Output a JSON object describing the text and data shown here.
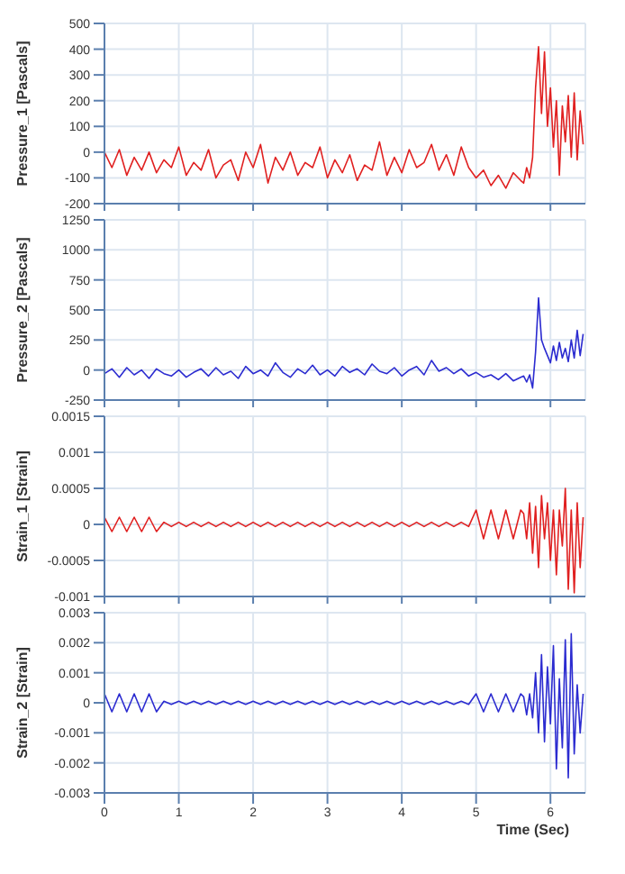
{
  "chart_data": [
    {
      "type": "line",
      "ylabel": "Pressure_1 [Pascals]",
      "color": "#e02020",
      "xlim": [
        0,
        6.47
      ],
      "xticks": [
        0,
        1,
        2,
        3,
        4,
        5,
        6
      ],
      "ylim": [
        -200,
        500
      ],
      "yticks": [
        -200,
        -100,
        0,
        100,
        200,
        300,
        400,
        500
      ],
      "grid": true,
      "tick_labels": "y",
      "x": [
        0,
        0.1,
        0.2,
        0.3,
        0.4,
        0.5,
        0.6,
        0.7,
        0.8,
        0.9,
        1,
        1.1,
        1.2,
        1.3,
        1.4,
        1.5,
        1.6,
        1.7,
        1.8,
        1.9,
        2,
        2.1,
        2.2,
        2.3,
        2.4,
        2.5,
        2.6,
        2.7,
        2.8,
        2.9,
        3,
        3.1,
        3.2,
        3.3,
        3.4,
        3.5,
        3.6,
        3.7,
        3.8,
        3.9,
        4,
        4.1,
        4.2,
        4.3,
        4.4,
        4.5,
        4.6,
        4.7,
        4.8,
        4.9,
        5,
        5.1,
        5.2,
        5.3,
        5.4,
        5.5,
        5.6,
        5.64,
        5.68,
        5.72,
        5.76,
        5.8,
        5.84,
        5.88,
        5.92,
        5.96,
        6,
        6.04,
        6.08,
        6.12,
        6.16,
        6.2,
        6.24,
        6.28,
        6.32,
        6.36,
        6.4,
        6.44
      ],
      "values": [
        0,
        -60,
        10,
        -90,
        -20,
        -70,
        0,
        -80,
        -30,
        -60,
        20,
        -90,
        -40,
        -70,
        10,
        -100,
        -50,
        -30,
        -110,
        0,
        -60,
        30,
        -120,
        -20,
        -70,
        0,
        -90,
        -40,
        -60,
        20,
        -100,
        -30,
        -80,
        -10,
        -110,
        -50,
        -70,
        40,
        -90,
        -20,
        -80,
        10,
        -60,
        -40,
        30,
        -70,
        -10,
        -90,
        20,
        -60,
        -100,
        -70,
        -130,
        -90,
        -140,
        -80,
        -110,
        -120,
        -60,
        -100,
        -20,
        250,
        410,
        150,
        390,
        100,
        250,
        20,
        200,
        -90,
        180,
        40,
        220,
        -20,
        230,
        -30,
        160,
        30
      ]
    },
    {
      "type": "line",
      "ylabel": "Pressure_2 [Pascals]",
      "color": "#2b2bd0",
      "xlim": [
        0,
        6.47
      ],
      "xticks": [
        0,
        1,
        2,
        3,
        4,
        5,
        6
      ],
      "ylim": [
        -250,
        1250
      ],
      "yticks": [
        -250,
        0,
        250,
        500,
        750,
        1000,
        1250
      ],
      "grid": true,
      "tick_labels": "y",
      "x": [
        0,
        0.1,
        0.2,
        0.3,
        0.4,
        0.5,
        0.6,
        0.7,
        0.8,
        0.9,
        1,
        1.1,
        1.2,
        1.3,
        1.4,
        1.5,
        1.6,
        1.7,
        1.8,
        1.9,
        2,
        2.1,
        2.2,
        2.3,
        2.4,
        2.5,
        2.6,
        2.7,
        2.8,
        2.9,
        3,
        3.1,
        3.2,
        3.3,
        3.4,
        3.5,
        3.6,
        3.7,
        3.8,
        3.9,
        4,
        4.1,
        4.2,
        4.3,
        4.4,
        4.5,
        4.6,
        4.7,
        4.8,
        4.9,
        5,
        5.1,
        5.2,
        5.3,
        5.4,
        5.5,
        5.6,
        5.64,
        5.68,
        5.72,
        5.76,
        5.8,
        5.84,
        5.88,
        5.92,
        5.96,
        6,
        6.04,
        6.08,
        6.12,
        6.16,
        6.2,
        6.24,
        6.28,
        6.32,
        6.36,
        6.4,
        6.44
      ],
      "values": [
        -30,
        10,
        -60,
        20,
        -40,
        0,
        -70,
        10,
        -30,
        -50,
        0,
        -60,
        -20,
        10,
        -50,
        20,
        -40,
        -10,
        -70,
        30,
        -30,
        0,
        -50,
        60,
        -20,
        -60,
        10,
        -30,
        40,
        -40,
        0,
        -50,
        30,
        -20,
        10,
        -40,
        50,
        -10,
        -30,
        20,
        -50,
        0,
        30,
        -40,
        80,
        -10,
        20,
        -30,
        10,
        -50,
        -20,
        -60,
        -40,
        -80,
        -30,
        -90,
        -60,
        -50,
        -100,
        -40,
        -150,
        150,
        600,
        250,
        180,
        120,
        60,
        200,
        80,
        230,
        100,
        180,
        70,
        250,
        100,
        330,
        120,
        300
      ]
    },
    {
      "type": "line",
      "ylabel": "Strain_1 [Strain]",
      "color": "#e02020",
      "xlim": [
        0,
        6.47
      ],
      "xticks": [
        0,
        1,
        2,
        3,
        4,
        5,
        6
      ],
      "ylim": [
        -0.001,
        0.0015
      ],
      "yticks": [
        -0.001,
        -0.0005,
        0,
        0.0005,
        0.001,
        0.0015
      ],
      "grid": true,
      "tick_labels": "y",
      "x": [
        0,
        0.1,
        0.2,
        0.3,
        0.4,
        0.5,
        0.6,
        0.7,
        0.8,
        0.9,
        1,
        1.1,
        1.2,
        1.3,
        1.4,
        1.5,
        1.6,
        1.7,
        1.8,
        1.9,
        2,
        2.1,
        2.2,
        2.3,
        2.4,
        2.5,
        2.6,
        2.7,
        2.8,
        2.9,
        3,
        3.1,
        3.2,
        3.3,
        3.4,
        3.5,
        3.6,
        3.7,
        3.8,
        3.9,
        4,
        4.1,
        4.2,
        4.3,
        4.4,
        4.5,
        4.6,
        4.7,
        4.8,
        4.9,
        5,
        5.1,
        5.2,
        5.3,
        5.4,
        5.5,
        5.6,
        5.64,
        5.68,
        5.72,
        5.76,
        5.8,
        5.84,
        5.88,
        5.92,
        5.96,
        6,
        6.04,
        6.08,
        6.12,
        6.16,
        6.2,
        6.24,
        6.28,
        6.32,
        6.36,
        6.4,
        6.44
      ],
      "values": [
        0.0001,
        -0.0001,
        0.0001,
        -0.0001,
        0.0001,
        -0.0001,
        0.0001,
        -0.0001,
        3e-05,
        -3e-05,
        3e-05,
        -3e-05,
        3e-05,
        -3e-05,
        3e-05,
        -3e-05,
        3e-05,
        -3e-05,
        3e-05,
        -3e-05,
        3e-05,
        -3e-05,
        3e-05,
        -3e-05,
        3e-05,
        -3e-05,
        3e-05,
        -3e-05,
        3e-05,
        -3e-05,
        3e-05,
        -3e-05,
        3e-05,
        -3e-05,
        3e-05,
        -3e-05,
        3e-05,
        -3e-05,
        3e-05,
        -3e-05,
        3e-05,
        -3e-05,
        3e-05,
        -3e-05,
        3e-05,
        -3e-05,
        3e-05,
        -3e-05,
        3e-05,
        -3e-05,
        0.0002,
        -0.0002,
        0.0002,
        -0.0002,
        0.0002,
        -0.0002,
        0.0002,
        0.00015,
        -0.0002,
        0.0003,
        -0.0004,
        0.00025,
        -0.0006,
        0.0004,
        -0.0002,
        0.0003,
        -0.0005,
        0.0002,
        -0.0007,
        0.0002,
        -0.0003,
        0.0005,
        -0.0009,
        0.0002,
        -0.00095,
        0.0003,
        -0.0006,
        0.0001
      ]
    },
    {
      "type": "line",
      "ylabel": "Strain_2 [Strain]",
      "xlabel": "Time (Sec)",
      "color": "#2b2bd0",
      "xlim": [
        0,
        6.47
      ],
      "xticks": [
        0,
        1,
        2,
        3,
        4,
        5,
        6
      ],
      "ylim": [
        -0.003,
        0.003
      ],
      "yticks": [
        -0.003,
        -0.002,
        -0.001,
        0,
        0.001,
        0.002,
        0.003
      ],
      "grid": true,
      "x": [
        0,
        0.1,
        0.2,
        0.3,
        0.4,
        0.5,
        0.6,
        0.7,
        0.8,
        0.9,
        1,
        1.1,
        1.2,
        1.3,
        1.4,
        1.5,
        1.6,
        1.7,
        1.8,
        1.9,
        2,
        2.1,
        2.2,
        2.3,
        2.4,
        2.5,
        2.6,
        2.7,
        2.8,
        2.9,
        3,
        3.1,
        3.2,
        3.3,
        3.4,
        3.5,
        3.6,
        3.7,
        3.8,
        3.9,
        4,
        4.1,
        4.2,
        4.3,
        4.4,
        4.5,
        4.6,
        4.7,
        4.8,
        4.9,
        5,
        5.1,
        5.2,
        5.3,
        5.4,
        5.5,
        5.6,
        5.64,
        5.68,
        5.72,
        5.76,
        5.8,
        5.84,
        5.88,
        5.92,
        5.96,
        6,
        6.04,
        6.08,
        6.12,
        6.16,
        6.2,
        6.24,
        6.28,
        6.32,
        6.36,
        6.4,
        6.44
      ],
      "values": [
        0.0003,
        -0.0003,
        0.0003,
        -0.0003,
        0.0003,
        -0.0003,
        0.0003,
        -0.0003,
        5e-05,
        -5e-05,
        5e-05,
        -5e-05,
        5e-05,
        -5e-05,
        5e-05,
        -5e-05,
        5e-05,
        -5e-05,
        5e-05,
        -5e-05,
        5e-05,
        -5e-05,
        5e-05,
        -5e-05,
        5e-05,
        -5e-05,
        5e-05,
        -5e-05,
        5e-05,
        -5e-05,
        5e-05,
        -5e-05,
        5e-05,
        -5e-05,
        5e-05,
        -5e-05,
        5e-05,
        -5e-05,
        5e-05,
        -5e-05,
        5e-05,
        -5e-05,
        5e-05,
        -5e-05,
        5e-05,
        -5e-05,
        5e-05,
        -5e-05,
        5e-05,
        -5e-05,
        0.0003,
        -0.0003,
        0.0003,
        -0.0003,
        0.0003,
        -0.0003,
        0.0003,
        0.0002,
        -0.0004,
        0.0003,
        -0.0005,
        0.001,
        -0.001,
        0.0016,
        -0.0013,
        0.0012,
        -0.0007,
        0.0019,
        -0.0022,
        0.0008,
        -0.0015,
        0.0021,
        -0.0025,
        0.0023,
        -0.0017,
        0.0006,
        -0.001,
        0.0003
      ]
    }
  ]
}
